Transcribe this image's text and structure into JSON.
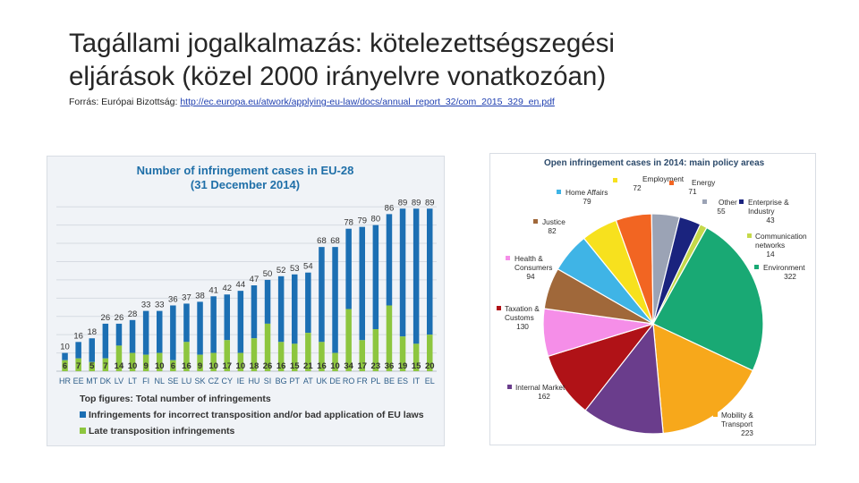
{
  "slide": {
    "title_line1": "Tagállami jogalkalmazás: kötelezettségszegési",
    "title_line2": "eljárások (közel 2000 irányelvre vonatkozóan)",
    "source_prefix": "Forrás: Európai Bizottság: ",
    "source_link": "http://ec.europa.eu/atwork/applying-eu-law/docs/annual_report_32/com_2015_329_en.pdf"
  },
  "colors": {
    "bar_blue": "#1c6fb3",
    "bar_green": "#8dc63f",
    "chart_title": "#1f6fa8"
  },
  "chart_data": [
    {
      "type": "bar",
      "title_line1": "Number of infringement cases in EU-28",
      "title_line2": "(31 December 2014)",
      "categories": [
        "HR",
        "EE",
        "MT",
        "DK",
        "LV",
        "LT",
        "FI",
        "NL",
        "SE",
        "LU",
        "SK",
        "CZ",
        "CY",
        "IE",
        "HU",
        "SI",
        "BG",
        "PT",
        "AT",
        "UK",
        "DE",
        "RO",
        "FR",
        "PL",
        "BE",
        "ES",
        "IT",
        "EL"
      ],
      "totals": [
        10,
        16,
        18,
        26,
        26,
        28,
        33,
        33,
        36,
        37,
        38,
        41,
        42,
        44,
        47,
        50,
        52,
        53,
        54,
        68,
        68,
        78,
        79,
        80,
        86,
        89,
        89,
        89
      ],
      "late_transposition": [
        6,
        7,
        5,
        7,
        14,
        10,
        9,
        10,
        6,
        16,
        9,
        10,
        17,
        10,
        18,
        26,
        16,
        15,
        21,
        16,
        10,
        34,
        17,
        23,
        36,
        19,
        15,
        20
      ],
      "ylim": [
        0,
        95
      ],
      "legend": [
        {
          "key": "top",
          "label": "Top figures: Total number of infringements"
        },
        {
          "key": "blue",
          "label": "Infringements for incorrect transposition and/or bad application of EU laws"
        },
        {
          "key": "green",
          "label": "Late transposition infringements"
        }
      ],
      "grid": true
    },
    {
      "type": "pie",
      "title": "Open infringement cases in 2014: main policy areas",
      "slices": [
        {
          "name": "Employment",
          "value": 72,
          "color": "#f7e11e"
        },
        {
          "name": "Energy",
          "value": 71,
          "color": "#f26522"
        },
        {
          "name": "Other",
          "value": 55,
          "color": "#9ba3b5"
        },
        {
          "name": "Enterprise & Industry",
          "value": 43,
          "color": "#1a237e"
        },
        {
          "name": "Communication networks",
          "value": 14,
          "color": "#c5d94a"
        },
        {
          "name": "Environment",
          "value": 322,
          "color": "#19a974"
        },
        {
          "name": "Mobility & Transport",
          "value": 223,
          "color": "#f7a81b"
        },
        {
          "name": "Internal Market",
          "value": 162,
          "color": "#6a3d8c"
        },
        {
          "name": "Taxation & Customs",
          "value": 130,
          "color": "#b01217"
        },
        {
          "name": "Health & Consumers",
          "value": 94,
          "color": "#f58ee8"
        },
        {
          "name": "Justice",
          "value": 82,
          "color": "#a0683a"
        },
        {
          "name": "Home Affairs",
          "value": 79,
          "color": "#3fb4e6"
        }
      ],
      "labels": [
        {
          "lines": [
            "Employment"
          ],
          "value": "72"
        },
        {
          "lines": [
            "Energy"
          ],
          "value": "71"
        },
        {
          "lines": [
            "Other"
          ],
          "value": "55"
        },
        {
          "lines": [
            "Enterprise &",
            "Industry"
          ],
          "value": "43"
        },
        {
          "lines": [
            "Communication",
            "networks"
          ],
          "value": "14"
        },
        {
          "lines": [
            "Environment"
          ],
          "value": "322"
        },
        {
          "lines": [
            "Mobility &",
            "Transport"
          ],
          "value": "223"
        },
        {
          "lines": [
            "Internal Market"
          ],
          "value": "162"
        },
        {
          "lines": [
            "Taxation &",
            "Customs"
          ],
          "value": "130"
        },
        {
          "lines": [
            "Health &",
            "Consumers"
          ],
          "value": "94"
        },
        {
          "lines": [
            "Justice"
          ],
          "value": "82"
        },
        {
          "lines": [
            "Home Affairs"
          ],
          "value": "79"
        }
      ]
    }
  ]
}
